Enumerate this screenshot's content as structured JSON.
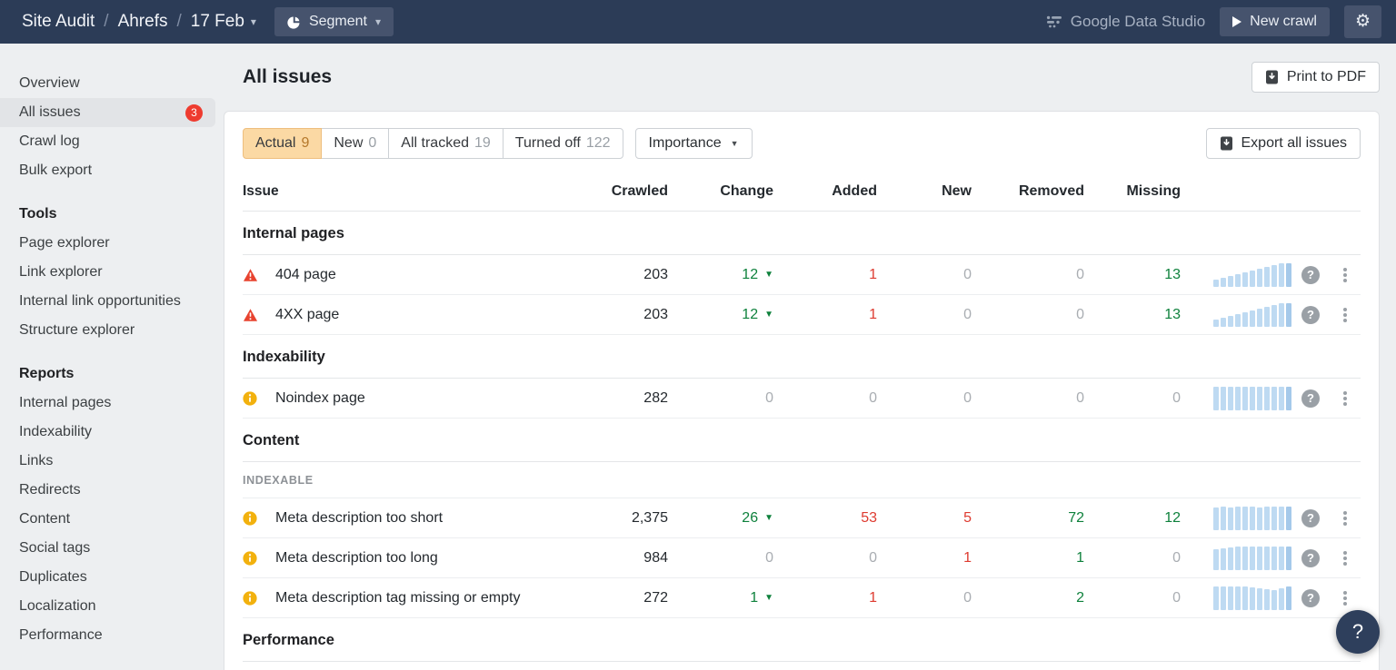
{
  "colors": {
    "navbar_bg": "#2c3c57",
    "navbar_button_bg": "#46536d",
    "badge_red": "#ee3b2f",
    "tab_active_bg": "#fbd9a4",
    "tab_active_count": "#b5782a",
    "positive_green": "#0e813c",
    "negative_red": "#de3b30",
    "muted_gray": "#a9adb2",
    "sparkline_blue": "#bedaf2",
    "error_red": "#e8432f",
    "notice_yellow": "#f2b10e"
  },
  "navbar": {
    "breadcrumb": {
      "section": "Site Audit",
      "separator": "/",
      "project": "Ahrefs",
      "date": "17 Feb"
    },
    "segment_label": "Segment",
    "gds_label": "Google Data Studio",
    "new_crawl_label": "New crawl"
  },
  "sidebar": {
    "groups": [
      {
        "header": "",
        "items": [
          {
            "label": "Overview"
          },
          {
            "label": "All issues",
            "badge": "3",
            "active": true
          },
          {
            "label": "Crawl log"
          },
          {
            "label": "Bulk export"
          }
        ]
      },
      {
        "header": "Tools",
        "items": [
          {
            "label": "Page explorer"
          },
          {
            "label": "Link explorer"
          },
          {
            "label": "Internal link opportunities"
          },
          {
            "label": "Structure explorer"
          }
        ]
      },
      {
        "header": "Reports",
        "items": [
          {
            "label": "Internal pages"
          },
          {
            "label": "Indexability"
          },
          {
            "label": "Links"
          },
          {
            "label": "Redirects"
          },
          {
            "label": "Content"
          },
          {
            "label": "Social tags"
          },
          {
            "label": "Duplicates"
          },
          {
            "label": "Localization"
          },
          {
            "label": "Performance"
          }
        ]
      }
    ]
  },
  "page": {
    "title": "All issues",
    "print_pdf_label": "Print to PDF"
  },
  "toolbar": {
    "tabs": [
      {
        "label": "Actual",
        "count": "9",
        "active": true
      },
      {
        "label": "New",
        "count": "0",
        "active": false
      },
      {
        "label": "All tracked",
        "count": "19",
        "active": false
      },
      {
        "label": "Turned off",
        "count": "122",
        "active": false
      }
    ],
    "importance_label": "Importance",
    "export_label": "Export all issues"
  },
  "table": {
    "headers": [
      "Issue",
      "Crawled",
      "Change",
      "Added",
      "New",
      "Removed",
      "Missing"
    ],
    "rows": [
      {
        "type": "section",
        "label": "Internal pages"
      },
      {
        "type": "issue",
        "severity": "error",
        "name": "404 page",
        "crawled": "203",
        "change": {
          "text": "12",
          "dir": "down",
          "color": "green"
        },
        "added": {
          "text": "1",
          "color": "red"
        },
        "new": {
          "text": "0",
          "color": "muted"
        },
        "removed": {
          "text": "0",
          "color": "muted"
        },
        "missing": {
          "text": "13",
          "color": "green"
        },
        "spark": [
          32,
          40,
          47,
          55,
          62,
          70,
          78,
          86,
          93,
          100,
          100
        ]
      },
      {
        "type": "issue",
        "severity": "error",
        "name": "4XX page",
        "crawled": "203",
        "change": {
          "text": "12",
          "dir": "down",
          "color": "green"
        },
        "added": {
          "text": "1",
          "color": "red"
        },
        "new": {
          "text": "0",
          "color": "muted"
        },
        "removed": {
          "text": "0",
          "color": "muted"
        },
        "missing": {
          "text": "13",
          "color": "green"
        },
        "spark": [
          32,
          40,
          47,
          55,
          62,
          70,
          78,
          86,
          93,
          100,
          100
        ]
      },
      {
        "type": "section",
        "label": "Indexability"
      },
      {
        "type": "issue",
        "severity": "notice",
        "name": "Noindex page",
        "crawled": "282",
        "change": {
          "text": "0",
          "dir": null,
          "color": "muted"
        },
        "added": {
          "text": "0",
          "color": "muted"
        },
        "new": {
          "text": "0",
          "color": "muted"
        },
        "removed": {
          "text": "0",
          "color": "muted"
        },
        "missing": {
          "text": "0",
          "color": "muted"
        },
        "spark": [
          100,
          100,
          100,
          100,
          100,
          100,
          100,
          100,
          100,
          100,
          100
        ]
      },
      {
        "type": "section",
        "label": "Content"
      },
      {
        "type": "subsection",
        "label": "INDEXABLE"
      },
      {
        "type": "issue",
        "severity": "notice",
        "name": "Meta description too short",
        "crawled": "2,375",
        "change": {
          "text": "26",
          "dir": "down",
          "color": "green"
        },
        "added": {
          "text": "53",
          "color": "red"
        },
        "new": {
          "text": "5",
          "color": "red"
        },
        "removed": {
          "text": "72",
          "color": "green"
        },
        "missing": {
          "text": "12",
          "color": "green"
        },
        "spark": [
          97,
          100,
          98,
          100,
          99,
          100,
          98,
          100,
          99,
          100,
          100
        ]
      },
      {
        "type": "issue",
        "severity": "notice",
        "name": "Meta description too long",
        "crawled": "984",
        "change": {
          "text": "0",
          "dir": null,
          "color": "muted"
        },
        "added": {
          "text": "0",
          "color": "muted"
        },
        "new": {
          "text": "1",
          "color": "red"
        },
        "removed": {
          "text": "1",
          "color": "green"
        },
        "missing": {
          "text": "0",
          "color": "muted"
        },
        "spark": [
          90,
          94,
          97,
          99,
          100,
          100,
          100,
          100,
          100,
          100,
          100
        ]
      },
      {
        "type": "issue",
        "severity": "notice",
        "name": "Meta description tag missing or empty",
        "crawled": "272",
        "change": {
          "text": "1",
          "dir": "down",
          "color": "green"
        },
        "added": {
          "text": "1",
          "color": "red"
        },
        "new": {
          "text": "0",
          "color": "muted"
        },
        "removed": {
          "text": "2",
          "color": "green"
        },
        "missing": {
          "text": "0",
          "color": "muted"
        },
        "spark": [
          100,
          100,
          100,
          100,
          100,
          97,
          92,
          88,
          86,
          92,
          100
        ]
      },
      {
        "type": "section",
        "label": "Performance"
      }
    ]
  },
  "help_button_label": "?"
}
